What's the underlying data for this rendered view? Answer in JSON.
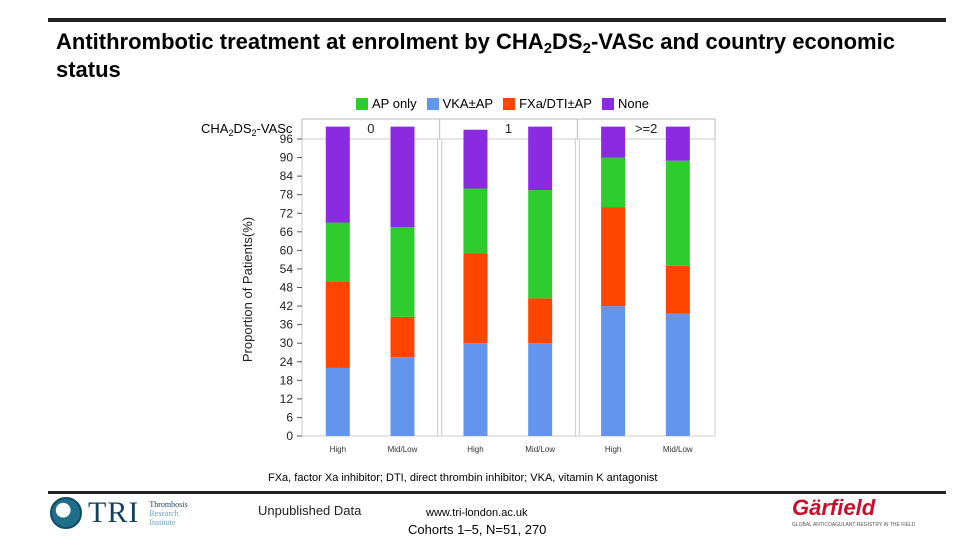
{
  "title": {
    "part1": "Antithrombotic treatment at enrolment by CHA",
    "sub1": "2",
    "part2": "DS",
    "sub2": "2",
    "part3": "-VASc and country economic status"
  },
  "legend": [
    {
      "label": "AP only",
      "color": "#2ecc2e"
    },
    {
      "label": "VKA±AP",
      "color": "#6495ed"
    },
    {
      "label": "FXa/DTI±AP",
      "color": "#ff4500"
    },
    {
      "label": "None",
      "color": "#8a2be2"
    }
  ],
  "cha_label": {
    "p1": "CHA",
    "s1": "2",
    "p2": "DS",
    "s2": "2",
    "p3": "-VASc"
  },
  "chart_data": {
    "type": "bar",
    "stacked": true,
    "ylabel": "Proportion of Patients(%)",
    "ylim": [
      0,
      96
    ],
    "yticks": [
      0,
      6,
      12,
      18,
      24,
      30,
      36,
      42,
      48,
      54,
      60,
      66,
      72,
      78,
      84,
      90,
      96
    ],
    "panel_label": "CHA2DS2-VASc",
    "panels": [
      {
        "label": "0",
        "categories": [
          "High",
          "Mid/Low"
        ]
      },
      {
        "label": "1",
        "categories": [
          "High",
          "Mid/Low"
        ]
      },
      {
        "label": ">=2",
        "categories": [
          "High",
          "Mid/Low"
        ]
      }
    ],
    "categories": [
      "High",
      "Mid/Low",
      "High",
      "Mid/Low",
      "High",
      "Mid/Low"
    ],
    "series": [
      {
        "name": "VKA±AP",
        "color": "#6495ed",
        "values": [
          22,
          25.5,
          30,
          30,
          42,
          39.5
        ]
      },
      {
        "name": "FXa/DTI±AP",
        "color": "#ff4500",
        "values": [
          28,
          13,
          29,
          14.5,
          32,
          15.5
        ]
      },
      {
        "name": "AP only",
        "color": "#2ecc2e",
        "values": [
          19,
          29,
          21,
          35,
          16,
          34
        ]
      },
      {
        "name": "None",
        "color": "#8a2be2",
        "values": [
          31,
          32.5,
          19,
          20.5,
          10,
          11
        ]
      }
    ]
  },
  "footnote": "FXa, factor Xa inhibitor; DTI, direct thrombin inhibitor; VKA, vitamin K antagonist",
  "footer": {
    "unpublished": "Unpublished Data",
    "url": "www.tri-london.ac.uk",
    "cohorts": "Cohorts 1–5, N=51, 270",
    "tri_text": "TRI",
    "tri_sub": [
      "Thrombosis",
      "Research",
      "Institute"
    ],
    "garfield_word": "Gärfield",
    "garfield_tag": "GLOBAL ANTICOAGULANT REGISTRY IN THE FIELD"
  }
}
